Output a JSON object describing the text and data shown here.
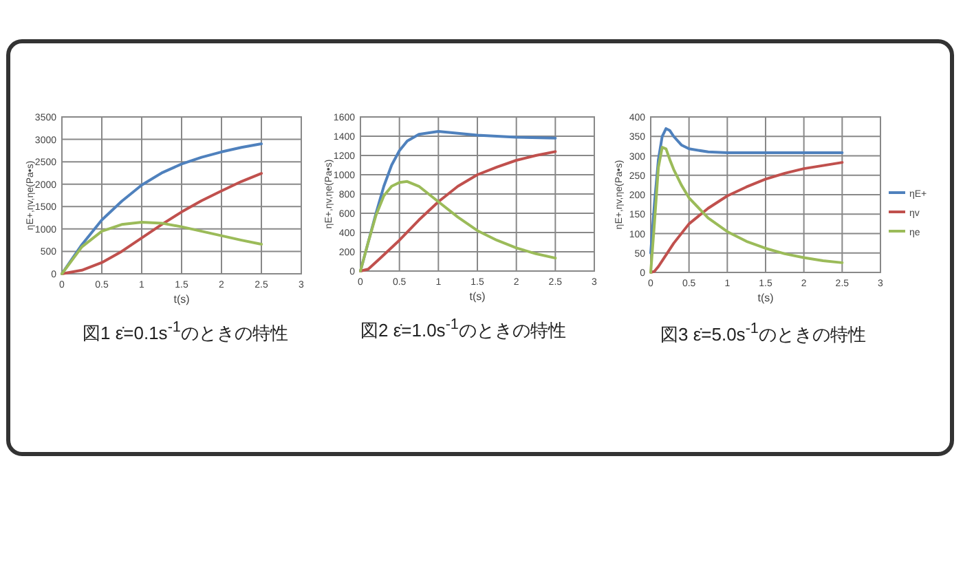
{
  "chart_data": [
    {
      "type": "line",
      "title": "図1 ε̇=0.1s$^{-1}$のときの特性",
      "xlabel": "t(s)",
      "ylabel": "ηE+,ηv,ηe(Pa•s)",
      "xlim": [
        0,
        3
      ],
      "xticks": [
        0,
        0.5,
        1,
        1.5,
        2,
        2.5,
        3
      ],
      "ylim": [
        0,
        3500
      ],
      "yticks": [
        0,
        500,
        1000,
        1500,
        2000,
        2500,
        3000,
        3500
      ],
      "grid": true,
      "series": [
        {
          "color": "#4f81bd",
          "x": [
            0,
            0.25,
            0.5,
            0.75,
            1,
            1.25,
            1.5,
            1.75,
            2,
            2.25,
            2.5
          ],
          "values": [
            0,
            650,
            1200,
            1620,
            1980,
            2250,
            2450,
            2600,
            2720,
            2820,
            2900
          ]
        },
        {
          "color": "#c0504d",
          "x": [
            0,
            0.25,
            0.5,
            0.75,
            1,
            1.25,
            1.5,
            1.75,
            2,
            2.25,
            2.5
          ],
          "values": [
            0,
            80,
            250,
            500,
            800,
            1100,
            1380,
            1630,
            1850,
            2060,
            2240
          ]
        },
        {
          "color": "#9bbb59",
          "x": [
            0,
            0.25,
            0.5,
            0.75,
            1,
            1.25,
            1.5,
            1.75,
            2,
            2.25,
            2.5
          ],
          "values": [
            0,
            600,
            950,
            1100,
            1150,
            1130,
            1050,
            950,
            850,
            750,
            660
          ]
        }
      ]
    },
    {
      "type": "line",
      "title": "図2 ε̇=1.0s$^{-1}$のときの特性",
      "xlabel": "t(s)",
      "ylabel": "ηE+,ηv,ηe(Pa•s)",
      "xlim": [
        0,
        3
      ],
      "xticks": [
        0,
        0.5,
        1,
        1.5,
        2,
        2.5,
        3
      ],
      "ylim": [
        0,
        1600
      ],
      "yticks": [
        0,
        200,
        400,
        600,
        800,
        1000,
        1200,
        1400,
        1600
      ],
      "grid": true,
      "series": [
        {
          "color": "#4f81bd",
          "x": [
            0,
            0.1,
            0.2,
            0.3,
            0.4,
            0.5,
            0.6,
            0.75,
            1,
            1.25,
            1.5,
            2,
            2.5
          ],
          "values": [
            0,
            300,
            600,
            880,
            1100,
            1250,
            1350,
            1420,
            1450,
            1430,
            1410,
            1390,
            1380
          ]
        },
        {
          "color": "#c0504d",
          "x": [
            0,
            0.1,
            0.25,
            0.5,
            0.75,
            1,
            1.25,
            1.5,
            1.75,
            2,
            2.25,
            2.5
          ],
          "values": [
            0,
            20,
            130,
            320,
            530,
            720,
            880,
            1000,
            1080,
            1150,
            1200,
            1240
          ]
        },
        {
          "color": "#9bbb59",
          "x": [
            0,
            0.1,
            0.2,
            0.3,
            0.4,
            0.5,
            0.6,
            0.75,
            1,
            1.25,
            1.5,
            1.75,
            2,
            2.25,
            2.5
          ],
          "values": [
            0,
            300,
            580,
            780,
            880,
            920,
            930,
            880,
            720,
            560,
            420,
            320,
            240,
            180,
            135
          ]
        }
      ]
    },
    {
      "type": "line",
      "title": "図3 ε̇=5.0s$^{-1}$のときの特性",
      "xlabel": "t(s)",
      "ylabel": "ηE+,ηv,ηe(Pa•s)",
      "xlim": [
        0,
        3
      ],
      "xticks": [
        0,
        0.5,
        1,
        1.5,
        2,
        2.5,
        3
      ],
      "ylim": [
        0,
        400
      ],
      "yticks": [
        0,
        50,
        100,
        150,
        200,
        250,
        300,
        350,
        400
      ],
      "grid": true,
      "legend": "right",
      "series": [
        {
          "name": "ηE+",
          "color": "#4f81bd",
          "x": [
            0,
            0.05,
            0.1,
            0.15,
            0.2,
            0.25,
            0.3,
            0.4,
            0.5,
            0.75,
            1,
            1.5,
            2,
            2.5
          ],
          "values": [
            50,
            180,
            290,
            350,
            370,
            365,
            350,
            328,
            318,
            310,
            308,
            308,
            308,
            308
          ]
        },
        {
          "name": "ηv",
          "color": "#c0504d",
          "x": [
            0,
            0.05,
            0.1,
            0.2,
            0.3,
            0.5,
            0.75,
            1,
            1.25,
            1.5,
            1.75,
            2,
            2.25,
            2.5
          ],
          "values": [
            0,
            3,
            15,
            45,
            75,
            125,
            165,
            197,
            220,
            240,
            255,
            267,
            275,
            283
          ]
        },
        {
          "name": "ηe",
          "color": "#9bbb59",
          "x": [
            0,
            0.05,
            0.1,
            0.15,
            0.2,
            0.25,
            0.3,
            0.4,
            0.5,
            0.75,
            1,
            1.25,
            1.5,
            1.75,
            2,
            2.25,
            2.5
          ],
          "values": [
            0,
            130,
            270,
            322,
            318,
            290,
            265,
            225,
            192,
            140,
            105,
            80,
            62,
            48,
            38,
            30,
            25
          ]
        }
      ]
    }
  ]
}
